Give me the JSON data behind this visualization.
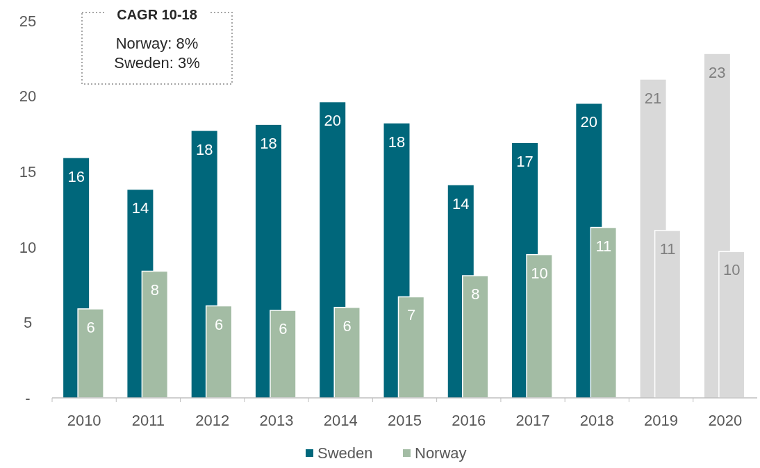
{
  "chart_data": {
    "type": "bar",
    "categories": [
      "2010",
      "2011",
      "2012",
      "2013",
      "2014",
      "2015",
      "2016",
      "2017",
      "2018",
      "2019",
      "2020"
    ],
    "series": [
      {
        "name": "Sweden",
        "color": "#00677b",
        "colors": [
          "#00677b",
          "#00677b",
          "#00677b",
          "#00677b",
          "#00677b",
          "#00677b",
          "#00677b",
          "#00677b",
          "#00677b",
          "#d9d9d9",
          "#d9d9d9"
        ],
        "values": [
          15.9,
          13.8,
          17.7,
          18.1,
          19.6,
          18.2,
          14.1,
          16.9,
          19.5,
          21.1,
          22.8
        ],
        "value_labels": [
          "16",
          "14",
          "18",
          "18",
          "20",
          "18",
          "14",
          "17",
          "20",
          "21",
          "23"
        ]
      },
      {
        "name": "Norway",
        "color": "#a3bca4",
        "colors": [
          "#a3bca4",
          "#a3bca4",
          "#a3bca4",
          "#a3bca4",
          "#a3bca4",
          "#a3bca4",
          "#a3bca4",
          "#a3bca4",
          "#a3bca4",
          "#d9d9d9",
          "#d9d9d9"
        ],
        "values": [
          5.9,
          8.4,
          6.1,
          5.8,
          6.0,
          6.7,
          8.1,
          9.5,
          11.3,
          11.1,
          9.7
        ],
        "value_labels": [
          "6",
          "8",
          "6",
          "6",
          "6",
          "7",
          "8",
          "10",
          "11",
          "11",
          "10"
        ]
      }
    ],
    "ylim": [
      0,
      25
    ],
    "yticks": [
      {
        "value": 0,
        "label": "-"
      },
      5,
      10,
      15,
      20,
      25
    ],
    "grid": false,
    "legend": "bottom",
    "annotations": [
      "CAGR 10-18",
      "Norway: 8%",
      "Sweden: 3%"
    ]
  }
}
